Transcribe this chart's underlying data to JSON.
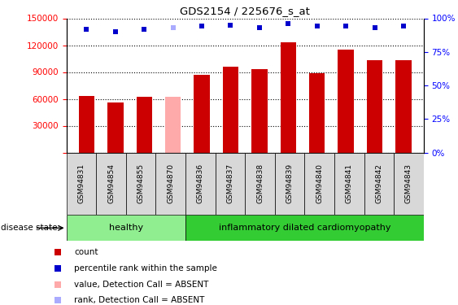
{
  "title": "GDS2154 / 225676_s_at",
  "samples": [
    "GSM94831",
    "GSM94854",
    "GSM94855",
    "GSM94870",
    "GSM94836",
    "GSM94837",
    "GSM94838",
    "GSM94839",
    "GSM94840",
    "GSM94841",
    "GSM94842",
    "GSM94843"
  ],
  "counts": [
    63000,
    56000,
    62000,
    62000,
    87000,
    96000,
    93000,
    123000,
    89000,
    115000,
    103000,
    103000
  ],
  "percentile_ranks": [
    92,
    90,
    92,
    93,
    94,
    95,
    93,
    96,
    94,
    94,
    93,
    94
  ],
  "absent_flags": [
    false,
    false,
    false,
    true,
    false,
    false,
    false,
    false,
    false,
    false,
    false,
    false
  ],
  "absent_rank_flags": [
    false,
    false,
    false,
    true,
    false,
    false,
    false,
    false,
    false,
    false,
    false,
    false
  ],
  "healthy_count": 4,
  "bar_color_normal": "#cc0000",
  "bar_color_absent": "#ffaaaa",
  "rank_color_normal": "#0000cc",
  "rank_color_absent": "#aaaaff",
  "healthy_bg": "#90ee90",
  "disease_bg": "#33cc33",
  "sample_bg": "#d8d8d8",
  "healthy_group_label": "healthy",
  "disease_group_label": "inflammatory dilated cardiomyopathy",
  "disease_state_label": "disease state",
  "ylim_left": [
    0,
    150000
  ],
  "ylim_right": [
    0,
    100
  ],
  "yticks_left": [
    0,
    30000,
    60000,
    90000,
    120000,
    150000
  ],
  "yticks_right": [
    0,
    25,
    50,
    75,
    100
  ],
  "legend_entries": [
    {
      "label": "count",
      "color": "#cc0000",
      "marker": "s"
    },
    {
      "label": "percentile rank within the sample",
      "color": "#0000cc",
      "marker": "s"
    },
    {
      "label": "value, Detection Call = ABSENT",
      "color": "#ffaaaa",
      "marker": "s"
    },
    {
      "label": "rank, Detection Call = ABSENT",
      "color": "#aaaaff",
      "marker": "s"
    }
  ],
  "figsize": [
    5.63,
    3.75
  ],
  "dpi": 100
}
